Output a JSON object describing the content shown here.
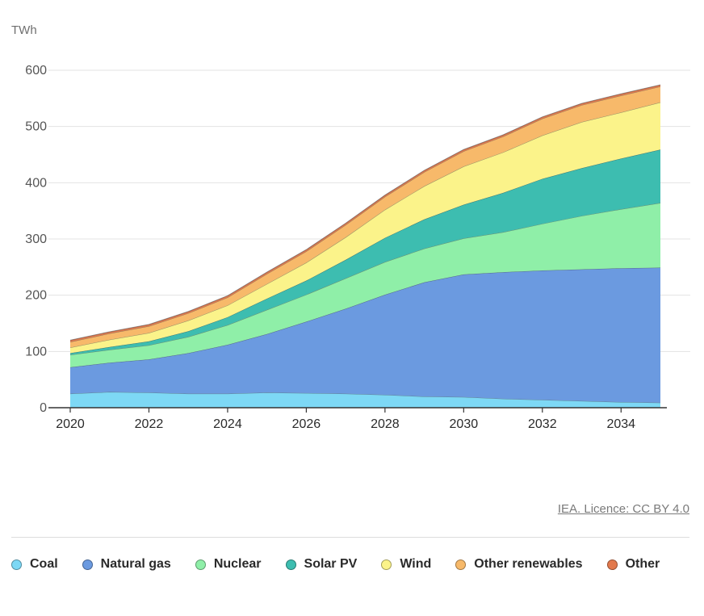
{
  "chart_data": {
    "type": "area",
    "stacked": true,
    "unit": "TWh",
    "x": [
      2020,
      2021,
      2022,
      2023,
      2024,
      2025,
      2026,
      2027,
      2028,
      2029,
      2030,
      2031,
      2032,
      2033,
      2034,
      2035
    ],
    "x_ticks": [
      "2020",
      "2022",
      "2024",
      "2026",
      "2028",
      "2030",
      "2032",
      "2034"
    ],
    "y_ticks": [
      "0",
      "100",
      "200",
      "300",
      "400",
      "500",
      "600"
    ],
    "ylim": [
      0,
      600
    ],
    "grid": true,
    "legend_position": "bottom",
    "series": [
      {
        "name": "Coal",
        "color": "#7dd8f5",
        "values": [
          25,
          28,
          27,
          25,
          25,
          27,
          26,
          25,
          23,
          20,
          19,
          16,
          14,
          12,
          10,
          9
        ]
      },
      {
        "name": "Natural gas",
        "color": "#6b9ae0",
        "values": [
          47,
          52,
          59,
          72,
          87,
          104,
          127,
          151,
          178,
          203,
          218,
          225,
          230,
          234,
          238,
          240
        ]
      },
      {
        "name": "Nuclear",
        "color": "#8fefa8",
        "values": [
          22,
          23,
          25,
          29,
          35,
          43,
          48,
          54,
          58,
          60,
          64,
          71,
          83,
          95,
          105,
          115
        ]
      },
      {
        "name": "Solar PV",
        "color": "#3dbdb0",
        "values": [
          3,
          5,
          7,
          10,
          14,
          20,
          25,
          33,
          43,
          52,
          60,
          70,
          80,
          85,
          90,
          95
        ]
      },
      {
        "name": "Wind",
        "color": "#fbf38a",
        "values": [
          10,
          13,
          15,
          19,
          21,
          26,
          32,
          40,
          50,
          59,
          68,
          72,
          77,
          82,
          82,
          84
        ]
      },
      {
        "name": "Other renewables",
        "color": "#f7b96a",
        "values": [
          10,
          11,
          12,
          13,
          14,
          18,
          20,
          22,
          23,
          25,
          27,
          28,
          30,
          30,
          30,
          28
        ]
      },
      {
        "name": "Other",
        "color": "#e2794d",
        "values": [
          3,
          3,
          3,
          3,
          3,
          3,
          3,
          3,
          3,
          3,
          3,
          3,
          3,
          3,
          3,
          3
        ]
      }
    ]
  },
  "credit": "IEA. Licence: CC BY 4.0"
}
